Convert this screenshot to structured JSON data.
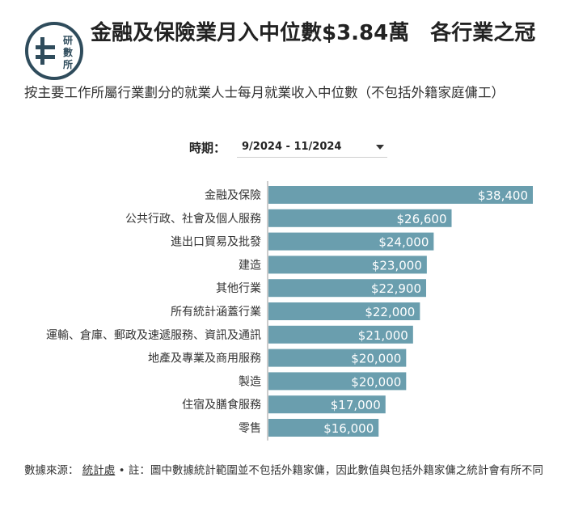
{
  "header": {
    "logo_text": "研數所",
    "title": "金融及保險業月入中位數$3.84萬　各行業之冠",
    "subtitle": "按主要工作所屬行業劃分的就業人士每月就業收入中位數（不包括外籍家庭傭工）"
  },
  "filter": {
    "label": "時期：",
    "selected": "9/2024 - 11/2024"
  },
  "footer": {
    "source_label": "數據來源：",
    "source_link": "統計處",
    "note": "• 註：圖中數據統計範圍並不包括外籍家傭，因此數值與包括外籍家傭之統計會有所不同"
  },
  "colors": {
    "bar": "#6a9eae",
    "label": "#ffffff"
  },
  "chart_data": {
    "type": "bar",
    "orientation": "horizontal",
    "categories": [
      "金融及保險",
      "公共行政、社會及個人服務",
      "進出口貿易及批發",
      "建造",
      "其他行業",
      "所有統計涵蓋行業",
      "運輸、倉庫、郵政及速遞服務、資訊及通訊",
      "地產及專業及商用服務",
      "製造",
      "住宿及膳食服務",
      "零售"
    ],
    "values": [
      38400,
      26600,
      24000,
      23000,
      22900,
      22000,
      21000,
      20000,
      20000,
      17000,
      16000
    ],
    "value_labels": [
      "$38,400",
      "$26,600",
      "$24,000",
      "$23,000",
      "$22,900",
      "$22,000",
      "$21,000",
      "$20,000",
      "$20,000",
      "$17,000",
      "$16,000"
    ],
    "xlim": [
      0,
      38400
    ],
    "grid": false,
    "legend": "none"
  }
}
